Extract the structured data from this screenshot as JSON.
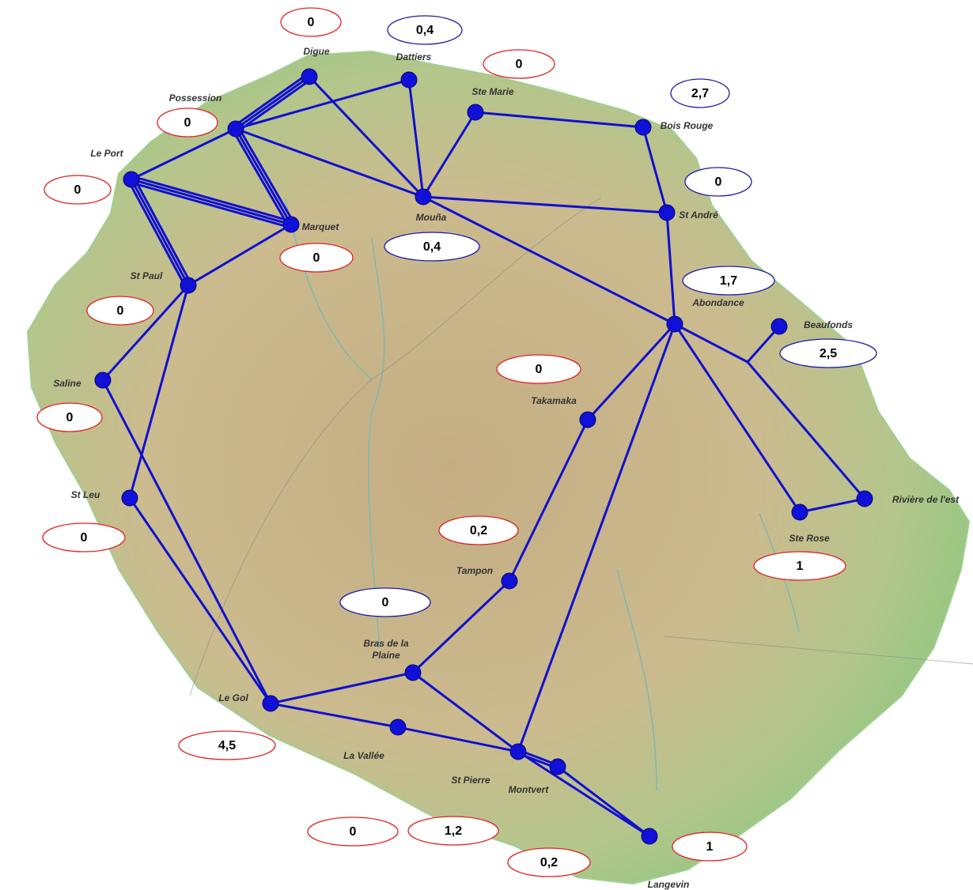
{
  "nodes": [
    {
      "label": "Digue"
    },
    {
      "label": "Dattiers"
    },
    {
      "label": "Possession"
    },
    {
      "label": "Le Port"
    },
    {
      "label": "Ste Marie"
    },
    {
      "label": "Bois Rouge"
    },
    {
      "label": "Mouña"
    },
    {
      "label": "Marquet"
    },
    {
      "label": "St André"
    },
    {
      "label": "St Paul"
    },
    {
      "label": "Abondance"
    },
    {
      "label": "Beaufonds"
    },
    {
      "label": "Saline"
    },
    {
      "label": "Takamaka"
    },
    {
      "label": "St Leu"
    },
    {
      "label": "Ste Rose"
    },
    {
      "label": "Rivière de l'est"
    },
    {
      "label": "Tampon"
    },
    {
      "label": "Bras de la Plaine"
    },
    {
      "label": "Le Gol"
    },
    {
      "label": "La Vallée"
    },
    {
      "label": "St Pierre"
    },
    {
      "label": "Montvert"
    },
    {
      "label": "Langevin"
    }
  ],
  "values": [
    {
      "text": "0",
      "color": "#e02222"
    },
    {
      "text": "0,4",
      "color": "#1c1ca8"
    },
    {
      "text": "0",
      "color": "#e02222"
    },
    {
      "text": "2,7",
      "color": "#1c1ca8"
    },
    {
      "text": "0",
      "color": "#e02222"
    },
    {
      "text": "0",
      "color": "#e02222"
    },
    {
      "text": "0",
      "color": "#1c1ca8"
    },
    {
      "text": "0",
      "color": "#e02222"
    },
    {
      "text": "0,4",
      "color": "#1c1ca8"
    },
    {
      "text": "1,7",
      "color": "#1c1ca8"
    },
    {
      "text": "0",
      "color": "#e02222"
    },
    {
      "text": "2,5",
      "color": "#1c1ca8"
    },
    {
      "text": "0",
      "color": "#e02222"
    },
    {
      "text": "0",
      "color": "#e02222"
    },
    {
      "text": "0,2",
      "color": "#e02222"
    },
    {
      "text": "0",
      "color": "#e02222"
    },
    {
      "text": "1",
      "color": "#e02222"
    },
    {
      "text": "0",
      "color": "#1c1ca8"
    },
    {
      "text": "4,5",
      "color": "#e02222"
    },
    {
      "text": "0",
      "color": "#e02222"
    },
    {
      "text": "1,2",
      "color": "#e02222"
    },
    {
      "text": "0,2",
      "color": "#e02222"
    },
    {
      "text": "1",
      "color": "#e02222"
    }
  ]
}
